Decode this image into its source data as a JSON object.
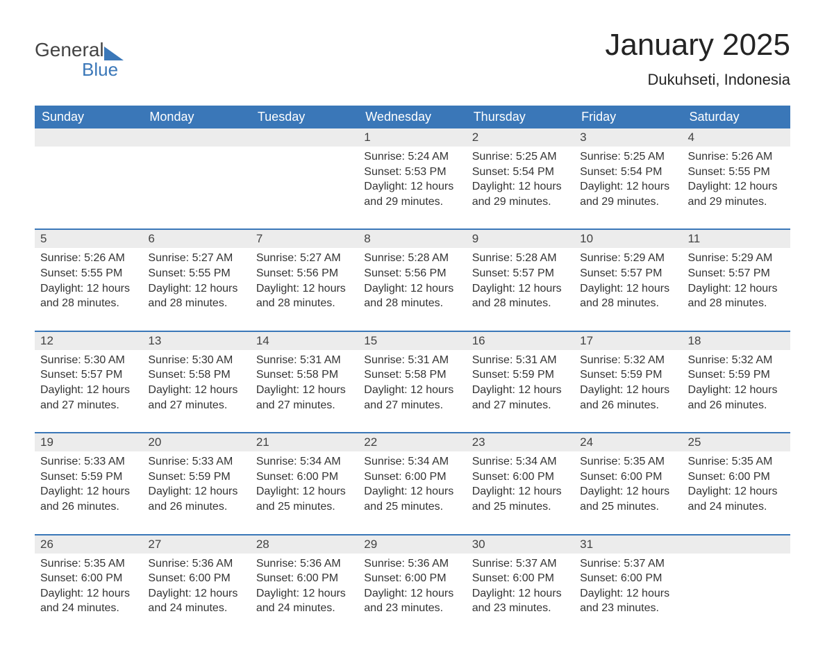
{
  "logo": {
    "word1": "General",
    "word2": "Blue"
  },
  "title": "January 2025",
  "location": "Dukuhseti, Indonesia",
  "colors": {
    "header_bg": "#3a77b8",
    "header_text": "#ffffff",
    "date_row_bg": "#ececec",
    "row_border": "#3a77b8",
    "body_text": "#333333",
    "logo_gray": "#444444",
    "logo_blue": "#3a77b8",
    "page_bg": "#ffffff"
  },
  "fonts": {
    "title_size_pt": 33,
    "header_size_pt": 14,
    "cell_size_pt": 12
  },
  "day_names": [
    "Sunday",
    "Monday",
    "Tuesday",
    "Wednesday",
    "Thursday",
    "Friday",
    "Saturday"
  ],
  "weeks": [
    [
      null,
      null,
      null,
      {
        "d": "1",
        "sunrise": "Sunrise: 5:24 AM",
        "sunset": "Sunset: 5:53 PM",
        "daylight": "Daylight: 12 hours and 29 minutes."
      },
      {
        "d": "2",
        "sunrise": "Sunrise: 5:25 AM",
        "sunset": "Sunset: 5:54 PM",
        "daylight": "Daylight: 12 hours and 29 minutes."
      },
      {
        "d": "3",
        "sunrise": "Sunrise: 5:25 AM",
        "sunset": "Sunset: 5:54 PM",
        "daylight": "Daylight: 12 hours and 29 minutes."
      },
      {
        "d": "4",
        "sunrise": "Sunrise: 5:26 AM",
        "sunset": "Sunset: 5:55 PM",
        "daylight": "Daylight: 12 hours and 29 minutes."
      }
    ],
    [
      {
        "d": "5",
        "sunrise": "Sunrise: 5:26 AM",
        "sunset": "Sunset: 5:55 PM",
        "daylight": "Daylight: 12 hours and 28 minutes."
      },
      {
        "d": "6",
        "sunrise": "Sunrise: 5:27 AM",
        "sunset": "Sunset: 5:55 PM",
        "daylight": "Daylight: 12 hours and 28 minutes."
      },
      {
        "d": "7",
        "sunrise": "Sunrise: 5:27 AM",
        "sunset": "Sunset: 5:56 PM",
        "daylight": "Daylight: 12 hours and 28 minutes."
      },
      {
        "d": "8",
        "sunrise": "Sunrise: 5:28 AM",
        "sunset": "Sunset: 5:56 PM",
        "daylight": "Daylight: 12 hours and 28 minutes."
      },
      {
        "d": "9",
        "sunrise": "Sunrise: 5:28 AM",
        "sunset": "Sunset: 5:57 PM",
        "daylight": "Daylight: 12 hours and 28 minutes."
      },
      {
        "d": "10",
        "sunrise": "Sunrise: 5:29 AM",
        "sunset": "Sunset: 5:57 PM",
        "daylight": "Daylight: 12 hours and 28 minutes."
      },
      {
        "d": "11",
        "sunrise": "Sunrise: 5:29 AM",
        "sunset": "Sunset: 5:57 PM",
        "daylight": "Daylight: 12 hours and 28 minutes."
      }
    ],
    [
      {
        "d": "12",
        "sunrise": "Sunrise: 5:30 AM",
        "sunset": "Sunset: 5:57 PM",
        "daylight": "Daylight: 12 hours and 27 minutes."
      },
      {
        "d": "13",
        "sunrise": "Sunrise: 5:30 AM",
        "sunset": "Sunset: 5:58 PM",
        "daylight": "Daylight: 12 hours and 27 minutes."
      },
      {
        "d": "14",
        "sunrise": "Sunrise: 5:31 AM",
        "sunset": "Sunset: 5:58 PM",
        "daylight": "Daylight: 12 hours and 27 minutes."
      },
      {
        "d": "15",
        "sunrise": "Sunrise: 5:31 AM",
        "sunset": "Sunset: 5:58 PM",
        "daylight": "Daylight: 12 hours and 27 minutes."
      },
      {
        "d": "16",
        "sunrise": "Sunrise: 5:31 AM",
        "sunset": "Sunset: 5:59 PM",
        "daylight": "Daylight: 12 hours and 27 minutes."
      },
      {
        "d": "17",
        "sunrise": "Sunrise: 5:32 AM",
        "sunset": "Sunset: 5:59 PM",
        "daylight": "Daylight: 12 hours and 26 minutes."
      },
      {
        "d": "18",
        "sunrise": "Sunrise: 5:32 AM",
        "sunset": "Sunset: 5:59 PM",
        "daylight": "Daylight: 12 hours and 26 minutes."
      }
    ],
    [
      {
        "d": "19",
        "sunrise": "Sunrise: 5:33 AM",
        "sunset": "Sunset: 5:59 PM",
        "daylight": "Daylight: 12 hours and 26 minutes."
      },
      {
        "d": "20",
        "sunrise": "Sunrise: 5:33 AM",
        "sunset": "Sunset: 5:59 PM",
        "daylight": "Daylight: 12 hours and 26 minutes."
      },
      {
        "d": "21",
        "sunrise": "Sunrise: 5:34 AM",
        "sunset": "Sunset: 6:00 PM",
        "daylight": "Daylight: 12 hours and 25 minutes."
      },
      {
        "d": "22",
        "sunrise": "Sunrise: 5:34 AM",
        "sunset": "Sunset: 6:00 PM",
        "daylight": "Daylight: 12 hours and 25 minutes."
      },
      {
        "d": "23",
        "sunrise": "Sunrise: 5:34 AM",
        "sunset": "Sunset: 6:00 PM",
        "daylight": "Daylight: 12 hours and 25 minutes."
      },
      {
        "d": "24",
        "sunrise": "Sunrise: 5:35 AM",
        "sunset": "Sunset: 6:00 PM",
        "daylight": "Daylight: 12 hours and 25 minutes."
      },
      {
        "d": "25",
        "sunrise": "Sunrise: 5:35 AM",
        "sunset": "Sunset: 6:00 PM",
        "daylight": "Daylight: 12 hours and 24 minutes."
      }
    ],
    [
      {
        "d": "26",
        "sunrise": "Sunrise: 5:35 AM",
        "sunset": "Sunset: 6:00 PM",
        "daylight": "Daylight: 12 hours and 24 minutes."
      },
      {
        "d": "27",
        "sunrise": "Sunrise: 5:36 AM",
        "sunset": "Sunset: 6:00 PM",
        "daylight": "Daylight: 12 hours and 24 minutes."
      },
      {
        "d": "28",
        "sunrise": "Sunrise: 5:36 AM",
        "sunset": "Sunset: 6:00 PM",
        "daylight": "Daylight: 12 hours and 24 minutes."
      },
      {
        "d": "29",
        "sunrise": "Sunrise: 5:36 AM",
        "sunset": "Sunset: 6:00 PM",
        "daylight": "Daylight: 12 hours and 23 minutes."
      },
      {
        "d": "30",
        "sunrise": "Sunrise: 5:37 AM",
        "sunset": "Sunset: 6:00 PM",
        "daylight": "Daylight: 12 hours and 23 minutes."
      },
      {
        "d": "31",
        "sunrise": "Sunrise: 5:37 AM",
        "sunset": "Sunset: 6:00 PM",
        "daylight": "Daylight: 12 hours and 23 minutes."
      },
      null
    ]
  ]
}
